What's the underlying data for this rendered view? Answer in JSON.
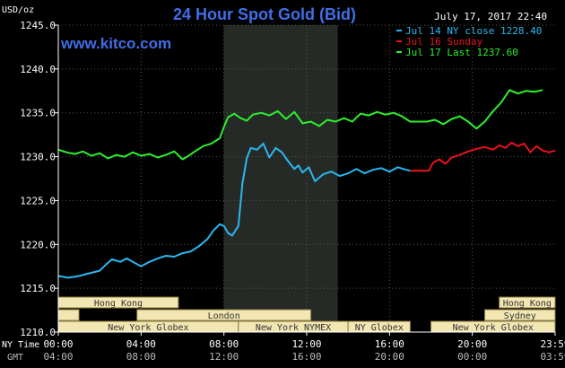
{
  "colors": {
    "background": "#000000",
    "axis": "#ffffff",
    "grid": "#555555",
    "night_band": "#262a26",
    "title": "#3f6fe8",
    "site": "#3f6fe8",
    "session_fill": "#f2e6b3",
    "session_stroke": "#8a7a40",
    "jul14": "#2ab8f0",
    "jul16": "#e8121b",
    "jul17": "#2cf02c"
  },
  "chart_data": {
    "type": "line",
    "title": "24 Hour Spot Gold (Bid)",
    "site": "www.kitco.com",
    "timestamp": "July 17, 2017 22:40",
    "ylabel": "USD/oz",
    "ylim": [
      1210,
      1245
    ],
    "yticks": [
      "1210.0",
      "1215.0",
      "1220.0",
      "1225.0",
      "1230.0",
      "1235.0",
      "1240.0",
      "1245.0"
    ],
    "xlim": [
      0,
      24
    ],
    "x_row_labels": [
      "NY Time",
      "GMT"
    ],
    "xticks_ny": [
      "00:00",
      "04:00",
      "08:00",
      "12:00",
      "16:00",
      "20:00",
      "23:59"
    ],
    "xticks_gmt": [
      "04:00",
      "08:00",
      "12:00",
      "16:00",
      "20:00",
      "00:00",
      "03:59"
    ],
    "grid": true,
    "legend_position": "top-right",
    "legend": [
      {
        "label": "Jul 14 NY close 1228.40",
        "color": "#2ab8f0"
      },
      {
        "label": "Jul 16 Sunday",
        "color": "#e8121b"
      },
      {
        "label": "Jul 17 Last 1237.60",
        "color": "#2cf02c"
      }
    ],
    "night_band": [
      8,
      13.5
    ],
    "sessions": [
      {
        "label": "Hong Kong",
        "start": 0,
        "end": 5.8,
        "row": 0
      },
      {
        "label": "Hong Kong",
        "start": 21.3,
        "end": 24,
        "row": 0
      },
      {
        "label": "London",
        "start": 3.8,
        "end": 12.2,
        "row": 1
      },
      {
        "label": "Sydney",
        "start": 20.6,
        "end": 24,
        "row": 1
      },
      {
        "label": "",
        "start": 0,
        "end": 1.0,
        "row": 1
      },
      {
        "label": "New York Globex",
        "start": 0,
        "end": 8.7,
        "row": 2
      },
      {
        "label": "New York NYMEX",
        "start": 8.7,
        "end": 14.0,
        "row": 2
      },
      {
        "label": "NY Globex",
        "start": 14.0,
        "end": 17.0,
        "row": 2
      },
      {
        "label": "New York Globex",
        "start": 18.0,
        "end": 24,
        "row": 2
      }
    ],
    "series": [
      {
        "name": "Jul 14 NY close 1228.40",
        "color": "#2ab8f0",
        "x": [
          0,
          0.5,
          1.0,
          1.5,
          2.0,
          2.3,
          2.6,
          3.0,
          3.3,
          3.6,
          4.0,
          4.4,
          4.8,
          5.2,
          5.6,
          6.0,
          6.4,
          6.8,
          7.2,
          7.5,
          7.8,
          8.0,
          8.2,
          8.4,
          8.7,
          8.9,
          9.1,
          9.3,
          9.6,
          9.9,
          10.2,
          10.5,
          10.8,
          11.1,
          11.4,
          11.6,
          11.8,
          12.1,
          12.4,
          12.8,
          13.2,
          13.6,
          14.0,
          14.4,
          14.8,
          15.2,
          15.6,
          16.0,
          16.4,
          16.8,
          17.0
        ],
        "y": [
          1216.4,
          1216.2,
          1216.4,
          1216.7,
          1217.0,
          1217.7,
          1218.3,
          1218.0,
          1218.4,
          1218.0,
          1217.5,
          1218.0,
          1218.4,
          1218.7,
          1218.6,
          1219.0,
          1219.2,
          1219.8,
          1220.6,
          1221.6,
          1222.3,
          1222.1,
          1221.3,
          1221.0,
          1222.1,
          1227.0,
          1229.8,
          1231.0,
          1230.8,
          1231.5,
          1229.9,
          1231.0,
          1230.5,
          1229.5,
          1228.6,
          1229.0,
          1228.2,
          1228.8,
          1227.2,
          1228.0,
          1228.3,
          1227.8,
          1228.1,
          1228.6,
          1228.1,
          1228.5,
          1228.7,
          1228.3,
          1228.8,
          1228.5,
          1228.4
        ]
      },
      {
        "name": "Jul 16 Sunday",
        "color": "#e8121b",
        "x": [
          17.0,
          17.5,
          17.9,
          18.1,
          18.4,
          18.7,
          19.0,
          19.4,
          19.8,
          20.2,
          20.6,
          21.0,
          21.3,
          21.6,
          21.9,
          22.2,
          22.5,
          22.8,
          23.1,
          23.4,
          23.7,
          24.0
        ],
        "y": [
          1228.4,
          1228.4,
          1228.4,
          1229.3,
          1229.7,
          1229.2,
          1229.9,
          1230.2,
          1230.6,
          1230.9,
          1231.1,
          1230.8,
          1231.3,
          1231.0,
          1231.6,
          1231.2,
          1231.5,
          1230.5,
          1231.2,
          1230.7,
          1230.5,
          1230.7
        ]
      },
      {
        "name": "Jul 17 Last 1237.60",
        "color": "#2cf02c",
        "x": [
          0,
          0.4,
          0.8,
          1.2,
          1.6,
          2.0,
          2.4,
          2.8,
          3.2,
          3.6,
          4.0,
          4.4,
          4.8,
          5.2,
          5.6,
          6.0,
          6.3,
          6.6,
          7.0,
          7.4,
          7.8,
          8.0,
          8.2,
          8.5,
          8.8,
          9.1,
          9.4,
          9.8,
          10.2,
          10.6,
          11.0,
          11.4,
          11.8,
          12.2,
          12.6,
          13.0,
          13.4,
          13.8,
          14.2,
          14.6,
          15.0,
          15.4,
          15.8,
          16.2,
          16.6,
          17.0,
          17.4,
          17.8,
          18.2,
          18.6,
          19.0,
          19.4,
          19.8,
          20.2,
          20.6,
          21.0,
          21.4,
          21.8,
          22.2,
          22.6,
          23.0,
          23.4
        ],
        "y": [
          1230.8,
          1230.5,
          1230.3,
          1230.6,
          1230.1,
          1230.4,
          1229.8,
          1230.2,
          1230.0,
          1230.5,
          1230.1,
          1230.3,
          1229.9,
          1230.2,
          1230.6,
          1229.7,
          1230.1,
          1230.6,
          1231.2,
          1231.5,
          1232.1,
          1233.4,
          1234.5,
          1234.9,
          1234.4,
          1234.1,
          1234.8,
          1235.0,
          1234.7,
          1235.2,
          1234.3,
          1235.1,
          1233.8,
          1234.0,
          1233.5,
          1234.2,
          1234.0,
          1234.4,
          1234.0,
          1234.9,
          1234.7,
          1235.1,
          1234.8,
          1235.0,
          1234.6,
          1234.0,
          1234.0,
          1234.0,
          1234.2,
          1233.7,
          1234.3,
          1234.6,
          1234.0,
          1233.2,
          1234.0,
          1235.2,
          1236.2,
          1237.6,
          1237.2,
          1237.5,
          1237.4,
          1237.6
        ]
      }
    ]
  }
}
